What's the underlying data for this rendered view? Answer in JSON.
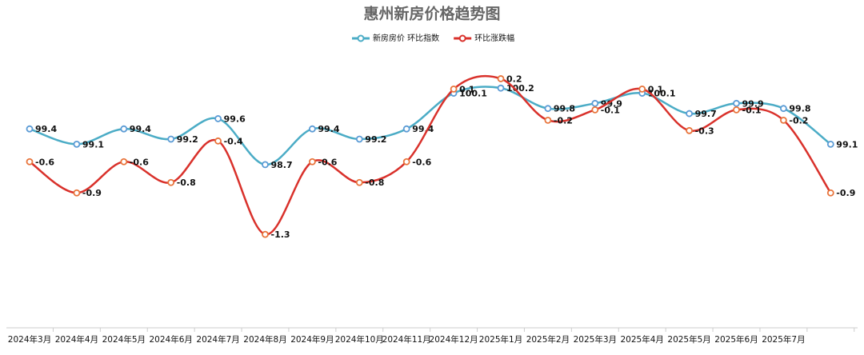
{
  "chart_data": {
    "type": "line",
    "title": "惠州新房价格趋势图",
    "categories": [
      "2024年3月",
      "2024年4月",
      "2024年5月",
      "2024年6月",
      "2024年7月",
      "2024年8月",
      "2024年9月",
      "2024年10月",
      "2024年11月",
      "2024年12月",
      "2025年1月",
      "2025年2月",
      "2025年3月",
      "2025年4月",
      "2025年5月",
      "2025年6月",
      "2025年7月",
      null
    ],
    "series": [
      {
        "name": "新房房价 环比指数",
        "color": "#4bacc6",
        "values": [
          99.4,
          99.1,
          99.4,
          99.2,
          99.6,
          98.7,
          99.4,
          99.2,
          99.4,
          100.1,
          100.2,
          99.8,
          99.9,
          100.1,
          99.7,
          99.9,
          99.8,
          99.1
        ]
      },
      {
        "name": "环比涨跌幅",
        "color": "#d9312b",
        "axis": "y2",
        "values": [
          -0.6,
          -0.9,
          -0.6,
          -0.8,
          -0.4,
          -1.3,
          -0.6,
          -0.8,
          -0.6,
          0.1,
          0.2,
          -0.2,
          -0.1,
          0.1,
          -0.3,
          -0.1,
          -0.2,
          -0.9
        ]
      }
    ],
    "ylim": [
      95.5,
      101.3
    ],
    "y2lim": [
      -2.2,
      0.65
    ],
    "legend": "top",
    "smooth": true
  }
}
